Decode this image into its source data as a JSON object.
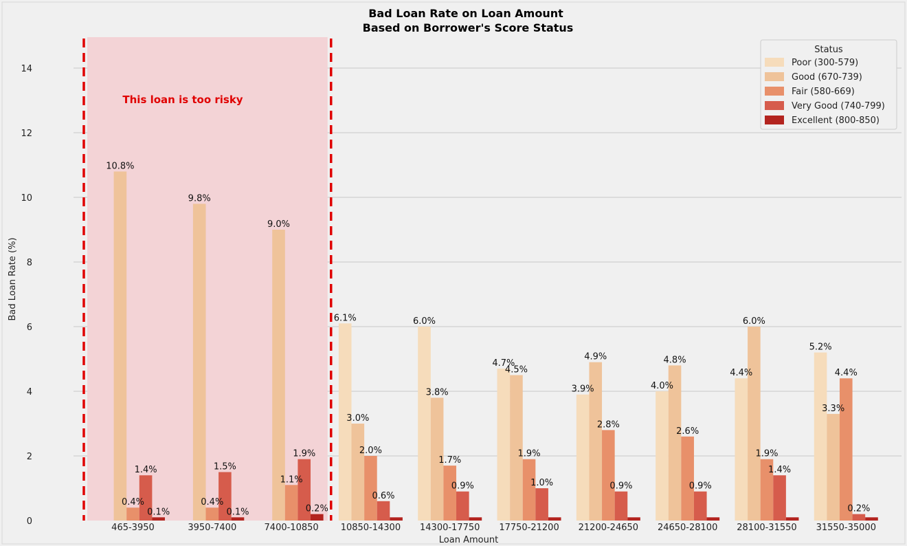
{
  "chart_data": {
    "type": "bar",
    "title": "Bad Loan Rate on Loan Amount",
    "subtitle": "Based on Borrower's Score Status",
    "xlabel": "Loan Amount",
    "ylabel": "Bad Loan Rate (%)",
    "ylim": [
      0,
      15
    ],
    "yticks": [
      0,
      2,
      4,
      6,
      8,
      10,
      12,
      14
    ],
    "grid": true,
    "legend_title": "Status",
    "legend_position": "top-right",
    "categories": [
      "465-3950",
      "3950-7400",
      "7400-10850",
      "10850-14300",
      "14300-17750",
      "17750-21200",
      "21200-24650",
      "24650-28100",
      "28100-31550",
      "31550-35000"
    ],
    "series": [
      {
        "name": "Poor (300-579)",
        "color": "#f6dcbb",
        "values": [
          0,
          0,
          0,
          6.1,
          6.0,
          4.7,
          3.9,
          4.0,
          4.4,
          5.2
        ],
        "labels": [
          "",
          "",
          "",
          "6.1%",
          "6.0%",
          "4.7%",
          "3.9%",
          "4.0%",
          "4.4%",
          "5.2%"
        ]
      },
      {
        "name": "Good (670-739)",
        "color": "#efc39a",
        "values": [
          10.8,
          9.8,
          9.0,
          3.0,
          3.8,
          4.5,
          4.9,
          4.8,
          6.0,
          3.3
        ],
        "labels": [
          "10.8%",
          "9.8%",
          "9.0%",
          "3.0%",
          "3.8%",
          "4.5%",
          "4.9%",
          "4.8%",
          "6.0%",
          "3.3%"
        ]
      },
      {
        "name": "Fair (580-669)",
        "color": "#e8906a",
        "values": [
          0.4,
          0.4,
          1.1,
          2.0,
          1.7,
          1.9,
          2.8,
          2.6,
          1.9,
          4.4
        ],
        "labels": [
          "0.4%",
          "0.4%",
          "1.1%",
          "2.0%",
          "1.7%",
          "1.9%",
          "2.8%",
          "2.6%",
          "1.9%",
          "4.4%"
        ]
      },
      {
        "name": "Very Good (740-799)",
        "color": "#d65c4c",
        "values": [
          1.4,
          1.5,
          1.9,
          0.6,
          0.9,
          1.0,
          0.9,
          0.9,
          1.4,
          0.2
        ],
        "labels": [
          "1.4%",
          "1.5%",
          "1.9%",
          "0.6%",
          "0.9%",
          "1.0%",
          "0.9%",
          "0.9%",
          "1.4%",
          "0.2%"
        ]
      },
      {
        "name": "Excellent (800-850)",
        "color": "#b3241f",
        "values": [
          0.1,
          0.1,
          0.2,
          0.1,
          0.1,
          0.1,
          0.1,
          0.1,
          0.1,
          0.1
        ],
        "labels": [
          "0.1%",
          "0.1%",
          "0.2%",
          "",
          "",
          "",
          "",
          "",
          "",
          ""
        ]
      }
    ],
    "annotation": {
      "text": "This loan is too risky",
      "span_categories": [
        "465-3950",
        "3950-7400",
        "7400-10850"
      ],
      "fill_color": "#f3d3d6",
      "border_color": "#e00000"
    },
    "colors": {
      "background": "#f0f0f0",
      "grid": "#cfcfcf"
    }
  }
}
